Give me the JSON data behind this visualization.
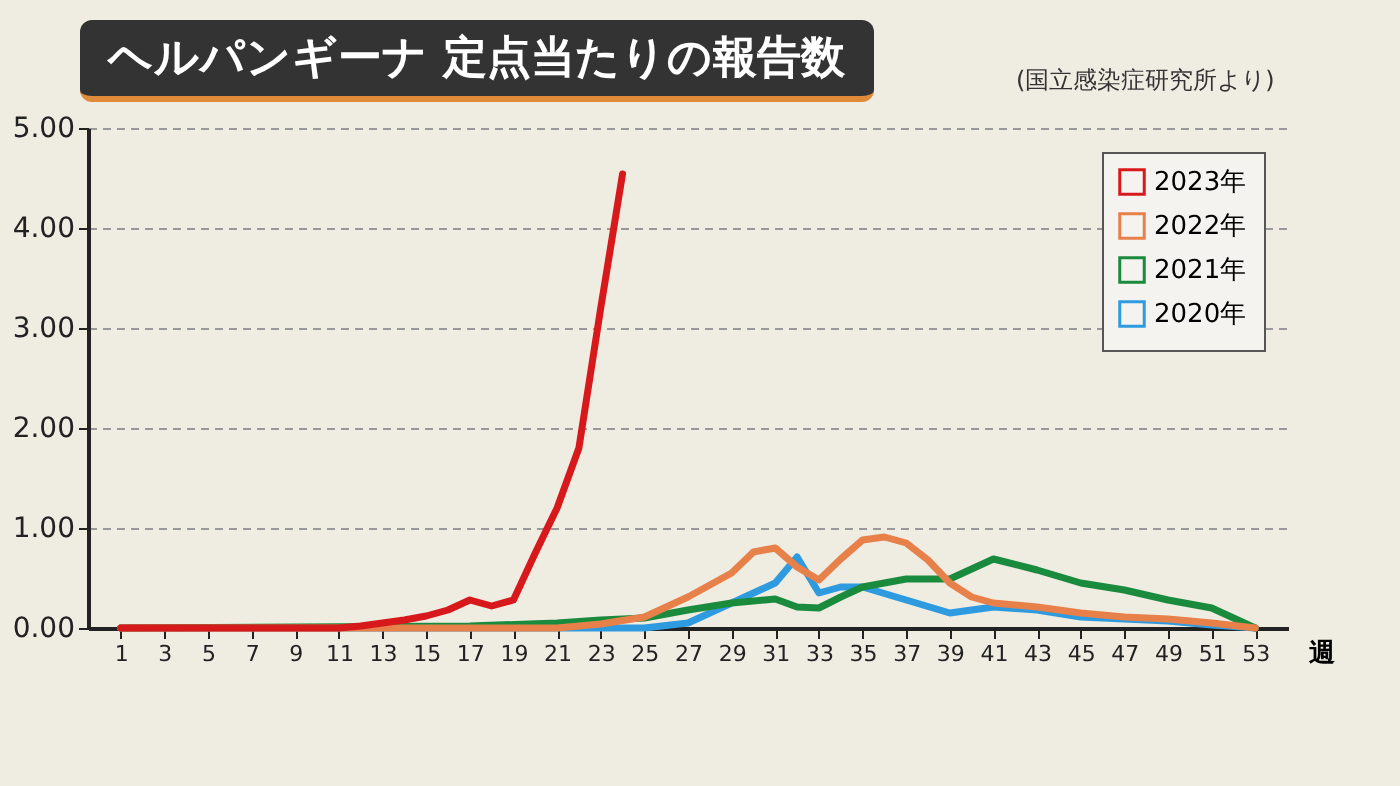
{
  "chart_data": {
    "type": "line",
    "title": "ヘルパンギーナ 定点当たりの報告数",
    "annotations": [
      "(国立感染症研究所より)"
    ],
    "xlabel": "週",
    "xlim": [
      -0.5,
      54.5
    ],
    "xticks": [
      1,
      3,
      5,
      7,
      9,
      11,
      13,
      15,
      17,
      19,
      21,
      23,
      25,
      27,
      29,
      31,
      33,
      35,
      37,
      39,
      41,
      43,
      45,
      47,
      49,
      51,
      53
    ],
    "ylim": [
      0,
      5
    ],
    "yticks": [
      {
        "value": 0,
        "label": "0.00"
      },
      {
        "value": 1,
        "label": "1.00"
      },
      {
        "value": 2,
        "label": "2.00"
      },
      {
        "value": 3,
        "label": "3.00"
      },
      {
        "value": 4,
        "label": "4.00"
      },
      {
        "value": 5,
        "label": "5.00"
      }
    ],
    "grid": "y",
    "legend": "top right",
    "series": [
      {
        "name": "2023年",
        "color": "#d7191c",
        "x": [
          1,
          2,
          3,
          4,
          5,
          6,
          7,
          8,
          9,
          10,
          11,
          12,
          13,
          14,
          15,
          16,
          17,
          18,
          19,
          20,
          21,
          22,
          23,
          24
        ],
        "values": [
          0,
          0,
          0,
          0,
          0,
          0,
          0,
          0,
          0,
          0,
          0,
          0.02,
          0.05,
          0.08,
          0.12,
          0.18,
          0.28,
          0.22,
          0.28,
          0.75,
          1.2,
          1.8,
          3.2,
          4.54
        ]
      },
      {
        "name": "2022年",
        "color": "#e8804a",
        "x": [
          1,
          21,
          23,
          25,
          27,
          29,
          30,
          31,
          32,
          33,
          34,
          35,
          36,
          37,
          38,
          39,
          40,
          41,
          43,
          45,
          47,
          49,
          51,
          53
        ],
        "values": [
          0,
          0,
          0.04,
          0.11,
          0.31,
          0.55,
          0.76,
          0.8,
          0.61,
          0.48,
          0.69,
          0.88,
          0.91,
          0.85,
          0.68,
          0.45,
          0.31,
          0.25,
          0.21,
          0.15,
          0.11,
          0.09,
          0.05,
          0
        ]
      },
      {
        "name": "2021年",
        "color": "#1a8a3c",
        "x": [
          1,
          17,
          21,
          23,
          25,
          27,
          29,
          31,
          32,
          33,
          34,
          35,
          37,
          39,
          41,
          43,
          45,
          47,
          49,
          51,
          53
        ],
        "values": [
          0,
          0.02,
          0.05,
          0.08,
          0.1,
          0.18,
          0.25,
          0.29,
          0.21,
          0.2,
          0.31,
          0.41,
          0.49,
          0.49,
          0.69,
          0.58,
          0.45,
          0.38,
          0.28,
          0.2,
          0
        ]
      },
      {
        "name": "2020年",
        "color": "#2e9be0",
        "x": [
          1,
          25,
          27,
          29,
          30,
          31,
          32,
          33,
          34,
          35,
          37,
          39,
          41,
          43,
          45,
          47,
          49,
          51,
          53
        ],
        "values": [
          0,
          0,
          0.05,
          0.25,
          0.35,
          0.45,
          0.71,
          0.35,
          0.41,
          0.41,
          0.28,
          0.15,
          0.21,
          0.18,
          0.11,
          0.09,
          0.07,
          0.03,
          0
        ]
      }
    ]
  }
}
